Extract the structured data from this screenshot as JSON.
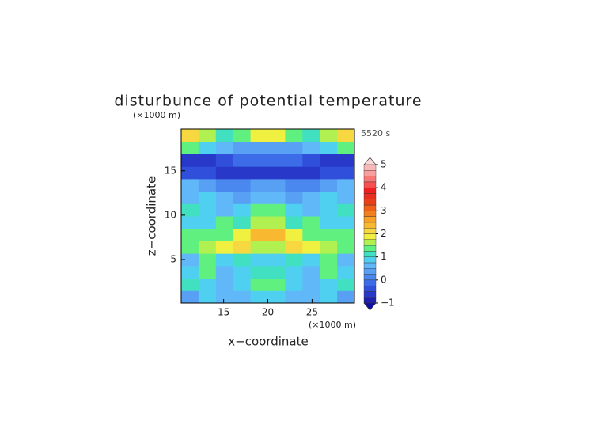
{
  "chart_data": {
    "type": "contourf",
    "title": "disturbunce of potential temperature",
    "time_label": "5520 s",
    "xlabel": "x−coordinate",
    "ylabel": "z−coordinate",
    "x_unit": "(×1000 m)",
    "y_unit": "(×1000 m)",
    "xlim": [
      10.2,
      29.8
    ],
    "ylim": [
      0.1,
      19.7
    ],
    "xticks": [
      15,
      20,
      25
    ],
    "yticks": [
      5,
      10,
      15
    ],
    "x": [
      11.18,
      13.14,
      15.1,
      17.06,
      19.02,
      20.98,
      22.94,
      24.9,
      26.86,
      28.82
    ],
    "y": [
      0.8,
      2.2,
      3.6,
      5.0,
      6.4,
      7.8,
      9.2,
      10.6,
      12.0,
      13.4,
      14.8,
      16.2,
      17.6,
      19.0
    ],
    "z": [
      [
        0.5,
        0.8,
        0.6,
        0.7,
        0.9,
        0.9,
        0.7,
        0.6,
        0.8,
        0.5
      ],
      [
        1.2,
        0.8,
        0.6,
        0.9,
        1.4,
        1.4,
        0.9,
        0.6,
        0.8,
        1.2
      ],
      [
        1.0,
        1.3,
        0.7,
        0.9,
        1.2,
        1.2,
        0.9,
        0.7,
        1.3,
        1.0
      ],
      [
        0.7,
        1.4,
        1.0,
        1.2,
        1.0,
        1.0,
        1.2,
        1.0,
        1.4,
        0.7
      ],
      [
        1.3,
        1.7,
        1.9,
        2.2,
        1.6,
        1.6,
        2.2,
        1.9,
        1.7,
        1.3
      ],
      [
        1.5,
        1.3,
        1.5,
        1.9,
        2.3,
        2.3,
        1.9,
        1.5,
        1.3,
        1.5
      ],
      [
        1.0,
        0.9,
        1.3,
        1.2,
        1.6,
        1.6,
        1.2,
        1.3,
        0.9,
        1.0
      ],
      [
        1.2,
        1.0,
        0.6,
        0.8,
        1.3,
        1.3,
        0.8,
        0.6,
        1.0,
        1.2
      ],
      [
        0.6,
        0.8,
        0.6,
        0.4,
        0.6,
        0.6,
        0.4,
        0.6,
        0.8,
        0.6
      ],
      [
        0.6,
        0.3,
        0.2,
        0.1,
        0.3,
        0.3,
        0.1,
        0.2,
        0.3,
        0.6
      ],
      [
        -0.3,
        -0.4,
        -0.5,
        -0.6,
        -0.7,
        -0.7,
        -0.6,
        -0.5,
        -0.4,
        -0.3
      ],
      [
        -0.6,
        -0.5,
        -0.3,
        -0.2,
        -0.1,
        -0.1,
        -0.2,
        -0.3,
        -0.5,
        -0.6
      ],
      [
        1.4,
        1.0,
        0.6,
        0.3,
        0.5,
        0.5,
        0.3,
        0.6,
        1.0,
        1.4
      ],
      [
        2.1,
        1.7,
        1.2,
        1.4,
        1.8,
        1.8,
        1.4,
        1.2,
        1.7,
        2.1
      ]
    ],
    "colorbar": {
      "levels": [
        -1,
        -0.75,
        -0.5,
        -0.25,
        0,
        0.25,
        0.5,
        0.75,
        1,
        1.25,
        1.5,
        1.75,
        2,
        2.25,
        2.5,
        2.75,
        3,
        3.25,
        3.5,
        3.75,
        4,
        4.25,
        4.5,
        4.75,
        5
      ],
      "colors": [
        "#2020b0",
        "#2838c8",
        "#3050dc",
        "#3c6ce8",
        "#4a88f0",
        "#58a0f4",
        "#60b8f8",
        "#50d0f0",
        "#40e0c0",
        "#60f080",
        "#b0f050",
        "#f0f040",
        "#f8d840",
        "#f8b830",
        "#f8a028",
        "#f08020",
        "#f06018",
        "#e84018",
        "#e83020",
        "#f02020",
        "#f85050",
        "#f87878",
        "#f8a0a0",
        "#f8b8b8"
      ],
      "under_color": "#1010a0",
      "over_color": "#f8d8d8",
      "ticks": [
        {
          "value": -1,
          "label": "−1"
        },
        0,
        1,
        2,
        3,
        4,
        5
      ]
    }
  }
}
